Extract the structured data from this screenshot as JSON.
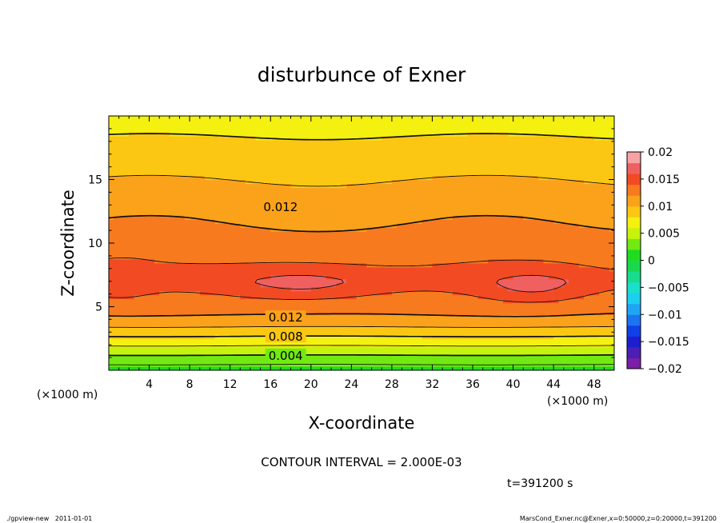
{
  "chart_data": {
    "type": "contour",
    "title": "disturbunce of Exner",
    "xlabel": "X-coordinate",
    "ylabel": "Z-coordinate",
    "x_unit": "(×1000 m)",
    "y_unit": "(×1000 m)",
    "xlim": [
      0,
      50
    ],
    "ylim": [
      0,
      20
    ],
    "x_ticks": [
      4,
      8,
      12,
      16,
      20,
      24,
      28,
      32,
      36,
      40,
      44,
      48
    ],
    "y_ticks": [
      5,
      10,
      15
    ],
    "contour_interval_text": "CONTOUR INTERVAL = 2.000E-03",
    "contour_labels": [
      {
        "text": "0.012",
        "x": 17,
        "z": 12.9
      },
      {
        "text": "0.012",
        "x": 17.5,
        "z": 4.2
      },
      {
        "text": "0.008",
        "x": 17.5,
        "z": 2.7
      },
      {
        "text": "0.004",
        "x": 17.5,
        "z": 1.2
      }
    ],
    "colorbar": {
      "ticks": [
        "0.02",
        "0.015",
        "0.01",
        "0.005",
        "0",
        "−0.005",
        "−0.01",
        "−0.015",
        "−0.02"
      ],
      "bands": [
        {
          "from": -0.02,
          "to": -0.018,
          "color": "#7a1fa8"
        },
        {
          "from": -0.018,
          "to": -0.016,
          "color": "#4b1fb4"
        },
        {
          "from": -0.016,
          "to": -0.014,
          "color": "#1c1ed0"
        },
        {
          "from": -0.014,
          "to": -0.012,
          "color": "#1040e6"
        },
        {
          "from": -0.012,
          "to": -0.01,
          "color": "#1c74f0"
        },
        {
          "from": -0.01,
          "to": -0.008,
          "color": "#1ea6f5"
        },
        {
          "from": -0.008,
          "to": -0.006,
          "color": "#1ccff0"
        },
        {
          "from": -0.006,
          "to": -0.004,
          "color": "#19e0c8"
        },
        {
          "from": -0.004,
          "to": -0.002,
          "color": "#18dc8e"
        },
        {
          "from": -0.002,
          "to": 0.0,
          "color": "#1ad84e"
        },
        {
          "from": 0.0,
          "to": 0.002,
          "color": "#20dc20"
        },
        {
          "from": 0.002,
          "to": 0.004,
          "color": "#72ea12"
        },
        {
          "from": 0.004,
          "to": 0.006,
          "color": "#c6f30c"
        },
        {
          "from": 0.006,
          "to": 0.008,
          "color": "#f4f010"
        },
        {
          "from": 0.008,
          "to": 0.01,
          "color": "#fbc712"
        },
        {
          "from": 0.01,
          "to": 0.012,
          "color": "#fba21b"
        },
        {
          "from": 0.012,
          "to": 0.014,
          "color": "#f77a1f"
        },
        {
          "from": 0.014,
          "to": 0.016,
          "color": "#f24a22"
        },
        {
          "from": 0.016,
          "to": 0.018,
          "color": "#f06060"
        },
        {
          "from": 0.018,
          "to": 0.02,
          "color": "#f7a3a3"
        }
      ]
    }
  },
  "time_label": "t=391200 s",
  "footer_left": "./gpview-new   2011-01-01",
  "footer_right": "MarsCond_Exner.nc@Exner,x=0:50000,z=0:20000,t=391200"
}
